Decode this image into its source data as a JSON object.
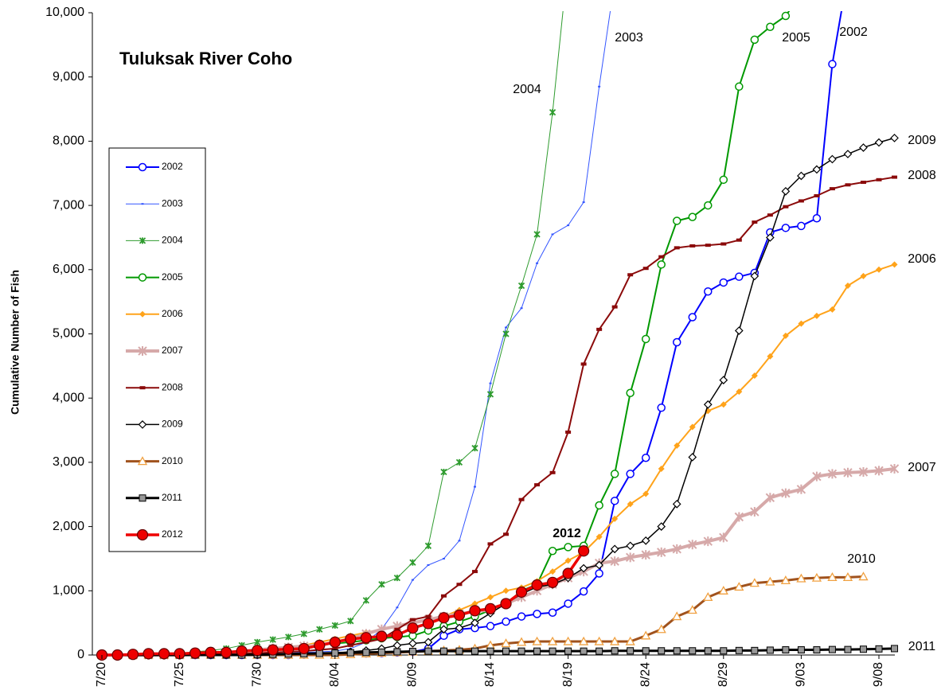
{
  "chart_data": {
    "type": "line",
    "title": "Tuluksak River Coho",
    "y_label": "Cumulative Number of Fish",
    "categories": [
      "7/20",
      null,
      null,
      null,
      null,
      "7/25",
      null,
      null,
      null,
      null,
      "7/30",
      null,
      null,
      null,
      null,
      "8/04",
      null,
      null,
      null,
      null,
      "8/09",
      null,
      null,
      null,
      null,
      "8/14",
      null,
      null,
      null,
      null,
      "8/19",
      null,
      null,
      null,
      null,
      "8/24",
      null,
      null,
      null,
      null,
      "8/29",
      null,
      null,
      null,
      null,
      "9/03",
      null,
      null,
      null,
      null,
      "9/08",
      null
    ],
    "ylim": [
      0,
      10000
    ],
    "yticks": [
      0,
      {
        "value": 1000,
        "label": "1,000"
      },
      {
        "value": 2000,
        "label": "2,000"
      },
      {
        "value": 3000,
        "label": "3,000"
      },
      {
        "value": 4000,
        "label": "4,000"
      },
      {
        "value": 5000,
        "label": "5,000"
      },
      {
        "value": 6000,
        "label": "6,000"
      },
      {
        "value": 7000,
        "label": "7,000"
      },
      {
        "value": 8000,
        "label": "8,000"
      },
      {
        "value": 9000,
        "label": "9,000"
      },
      {
        "value": 10000,
        "label": "10,000"
      }
    ],
    "grid": false,
    "series": [
      {
        "name": "2002",
        "color": "#0000ff",
        "marker": "circle-open",
        "values": [
          0,
          0,
          0,
          0,
          0,
          0,
          0,
          0,
          0,
          0,
          0,
          0,
          0,
          5,
          10,
          15,
          20,
          25,
          30,
          40,
          50,
          100,
          300,
          400,
          420,
          450,
          520,
          600,
          640,
          660,
          800,
          990,
          1270,
          2400,
          2820,
          3070,
          3850,
          4870,
          5260,
          5660,
          5800,
          5890,
          5950,
          6580,
          6650,
          6680,
          6800,
          9200,
          10600,
          null,
          null,
          null
        ]
      },
      {
        "name": "2003",
        "color": "#3355ff",
        "marker": "dash",
        "values": [
          0,
          0,
          0,
          0,
          0,
          0,
          0,
          0,
          0,
          0,
          10,
          20,
          30,
          40,
          50,
          60,
          100,
          200,
          400,
          740,
          1170,
          1400,
          1500,
          1780,
          2620,
          4230,
          5100,
          5400,
          6100,
          6550,
          6690,
          7050,
          8850,
          10500,
          null,
          null,
          null,
          null,
          null,
          null,
          null,
          null,
          null,
          null,
          null,
          null,
          null,
          null,
          null,
          null,
          null,
          null
        ]
      },
      {
        "name": "2004",
        "color": "#2e9b2e",
        "marker": "x",
        "values": [
          0,
          0,
          0,
          10,
          20,
          30,
          50,
          70,
          100,
          150,
          200,
          240,
          280,
          330,
          400,
          460,
          530,
          850,
          1100,
          1200,
          1440,
          1700,
          2850,
          3000,
          3220,
          4060,
          5000,
          5750,
          6550,
          8450,
          10800,
          null,
          null,
          null,
          null,
          null,
          null,
          null,
          null,
          null,
          null,
          null,
          null,
          null,
          null,
          null,
          null,
          null,
          null,
          null,
          null,
          null
        ]
      },
      {
        "name": "2005",
        "color": "#009900",
        "marker": "circle-open",
        "values": [
          0,
          0,
          0,
          0,
          0,
          10,
          20,
          30,
          40,
          50,
          60,
          80,
          100,
          120,
          150,
          180,
          200,
          230,
          260,
          280,
          300,
          380,
          450,
          520,
          600,
          700,
          800,
          1000,
          1100,
          1620,
          1680,
          1700,
          2330,
          2820,
          4080,
          4920,
          6080,
          6760,
          6820,
          7000,
          7400,
          8850,
          9580,
          9780,
          9950,
          10300,
          null,
          null,
          null,
          null,
          null,
          null
        ]
      },
      {
        "name": "2006",
        "color": "#ffa31a",
        "marker": "diamond-filled",
        "values": [
          0,
          0,
          0,
          0,
          10,
          20,
          30,
          40,
          50,
          60,
          80,
          100,
          120,
          150,
          200,
          250,
          300,
          350,
          400,
          450,
          500,
          550,
          600,
          700,
          800,
          900,
          1000,
          1050,
          1150,
          1300,
          1470,
          1600,
          1840,
          2120,
          2350,
          2510,
          2900,
          3260,
          3550,
          3800,
          3900,
          4100,
          4350,
          4650,
          4970,
          5160,
          5280,
          5380,
          5750,
          5900,
          6000,
          6080
        ]
      },
      {
        "name": "2007",
        "color": "#d6a9a9",
        "marker": "star",
        "values": [
          0,
          0,
          0,
          0,
          0,
          0,
          10,
          20,
          40,
          60,
          80,
          100,
          120,
          140,
          150,
          200,
          250,
          330,
          400,
          450,
          500,
          550,
          600,
          640,
          680,
          700,
          800,
          900,
          1000,
          1100,
          1200,
          1300,
          1430,
          1460,
          1520,
          1560,
          1600,
          1650,
          1720,
          1770,
          1830,
          2150,
          2230,
          2450,
          2520,
          2580,
          2780,
          2820,
          2840,
          2850,
          2870,
          2900
        ]
      },
      {
        "name": "2008",
        "color": "#8b0a0a",
        "marker": "dash-thick",
        "values": [
          0,
          0,
          0,
          0,
          0,
          0,
          0,
          0,
          10,
          20,
          30,
          40,
          50,
          60,
          80,
          100,
          150,
          200,
          250,
          400,
          550,
          600,
          920,
          1100,
          1300,
          1730,
          1880,
          2420,
          2650,
          2840,
          3470,
          4530,
          5070,
          5420,
          5920,
          6020,
          6200,
          6340,
          6370,
          6380,
          6400,
          6460,
          6740,
          6850,
          6980,
          7070,
          7150,
          7260,
          7320,
          7360,
          7400,
          7440
        ]
      },
      {
        "name": "2009",
        "color": "#000000",
        "marker": "diamond-open",
        "values": [
          0,
          0,
          0,
          0,
          0,
          0,
          0,
          0,
          0,
          10,
          10,
          15,
          20,
          25,
          30,
          30,
          50,
          70,
          100,
          150,
          180,
          200,
          400,
          420,
          500,
          650,
          800,
          950,
          1060,
          1100,
          1200,
          1350,
          1400,
          1650,
          1700,
          1780,
          2000,
          2350,
          3080,
          3900,
          4280,
          5050,
          5900,
          6500,
          7220,
          7460,
          7560,
          7720,
          7800,
          7900,
          7980,
          8050
        ]
      },
      {
        "name": "2010",
        "color": "#a0521d",
        "marker": "triangle-open",
        "values": [
          0,
          0,
          0,
          0,
          0,
          0,
          0,
          0,
          0,
          0,
          0,
          0,
          0,
          0,
          0,
          0,
          10,
          20,
          30,
          40,
          50,
          60,
          70,
          80,
          100,
          150,
          180,
          200,
          210,
          210,
          210,
          210,
          210,
          210,
          210,
          300,
          400,
          600,
          700,
          900,
          1000,
          1060,
          1120,
          1140,
          1160,
          1190,
          1200,
          1210,
          1210,
          1220,
          null,
          null
        ]
      },
      {
        "name": "2011",
        "color": "#000000",
        "marker": "square",
        "values": [
          0,
          0,
          0,
          0,
          0,
          0,
          0,
          0,
          0,
          0,
          5,
          10,
          15,
          20,
          25,
          30,
          35,
          40,
          45,
          50,
          55,
          60,
          60,
          60,
          60,
          60,
          60,
          60,
          60,
          60,
          60,
          60,
          60,
          65,
          65,
          65,
          65,
          65,
          65,
          65,
          65,
          70,
          70,
          75,
          80,
          80,
          80,
          85,
          85,
          90,
          95,
          100
        ]
      },
      {
        "name": "2012",
        "color": "#ee0000",
        "marker": "circle-filled",
        "values": [
          0,
          0,
          10,
          20,
          20,
          20,
          30,
          40,
          40,
          60,
          70,
          80,
          90,
          100,
          150,
          200,
          250,
          270,
          290,
          310,
          420,
          490,
          580,
          620,
          690,
          720,
          800,
          980,
          1090,
          1130,
          1270,
          1620,
          null,
          null,
          null,
          null,
          null,
          null,
          null,
          null,
          null,
          null,
          null,
          null,
          null,
          null,
          null,
          null,
          null,
          null,
          null,
          null
        ]
      }
    ],
    "annotations": [
      "2003",
      "2004",
      "2005",
      "2002",
      "2009",
      "2008",
      "2006",
      "2007",
      "2010",
      "2011",
      "2012"
    ]
  }
}
